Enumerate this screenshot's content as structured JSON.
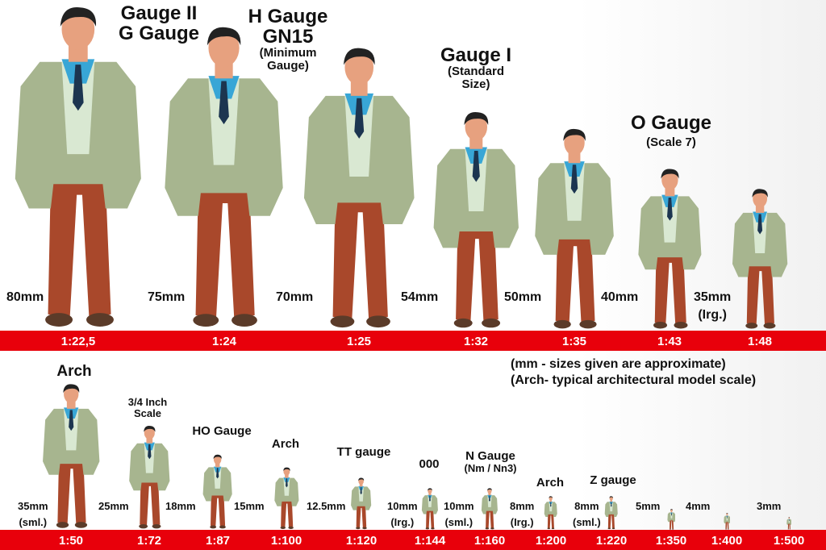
{
  "colors": {
    "bar": "#e8000b",
    "jacket": "#a7b58f",
    "shirt": "#38a6d6",
    "vest": "#d9e8d2",
    "trousers": "#a9482b",
    "shoes": "#5b3b29",
    "skin": "#e7a17f",
    "hair": "#222222"
  },
  "top_row": {
    "figures": [
      {
        "scale": "1:22,5",
        "mm": 80
      },
      {
        "scale": "1:24",
        "mm": 75
      },
      {
        "scale": "1:25",
        "mm": 70
      },
      {
        "scale": "1:32",
        "mm": 54
      },
      {
        "scale": "1:35",
        "mm": 50
      },
      {
        "scale": "1:43",
        "mm": 40
      },
      {
        "scale": "1:48",
        "mm": 35
      }
    ],
    "size_labels": [
      "80mm",
      "75mm",
      "70mm",
      "54mm",
      "50mm",
      "40mm",
      "35mm",
      "(Irg.)"
    ],
    "gauge_labels": {
      "g2_line1": "Gauge II",
      "g2_line2": "G Gauge",
      "h_line1": "H Gauge",
      "h_line2": "GN15",
      "h_line3": "(Minimum",
      "h_line4": "Gauge)",
      "g1_line1": "Gauge I",
      "g1_line2": "(Standard",
      "g1_line3": "Size)",
      "o_line1": "O Gauge",
      "o_line2": "(Scale 7)"
    }
  },
  "notes": [
    "(mm - sizes given are approximate)",
    "(Arch- typical architectural model scale)"
  ],
  "bottom_row": {
    "figures": [
      {
        "scale": "1:50",
        "mm": 35
      },
      {
        "scale": "1:72",
        "mm": 25
      },
      {
        "scale": "1:87",
        "mm": 18
      },
      {
        "scale": "1:100",
        "mm": 15
      },
      {
        "scale": "1:120",
        "mm": 12.5
      },
      {
        "scale": "1:144",
        "mm": 10
      },
      {
        "scale": "1:160",
        "mm": 10
      },
      {
        "scale": "1:200",
        "mm": 8
      },
      {
        "scale": "1:220",
        "mm": 8
      },
      {
        "scale": "1:350",
        "mm": 5
      },
      {
        "scale": "1:400",
        "mm": 4
      },
      {
        "scale": "1:500",
        "mm": 3
      }
    ],
    "size_labels": {
      "a": "35mm",
      "a2": "(sml.)",
      "b": "25mm",
      "c": "18mm",
      "d": "15mm",
      "e": "12.5mm",
      "f": "10mm",
      "f2": "(Irg.)",
      "g": "10mm",
      "g2": "(sml.)",
      "h": "8mm",
      "h2": "(Irg.)",
      "i": "8mm",
      "i2": "(sml.)",
      "j": "5mm",
      "k": "4mm",
      "l": "3mm"
    },
    "gauge_labels": {
      "arch1": "Arch",
      "q_line1": "3/4 Inch",
      "q_line2": "Scale",
      "ho": "HO Gauge",
      "arch2": "Arch",
      "tt": "TT gauge",
      "ooo": "000",
      "n_line1": "N Gauge",
      "n_line2": "(Nm / Nn3)",
      "arch3": "Arch",
      "z": "Z gauge"
    }
  }
}
